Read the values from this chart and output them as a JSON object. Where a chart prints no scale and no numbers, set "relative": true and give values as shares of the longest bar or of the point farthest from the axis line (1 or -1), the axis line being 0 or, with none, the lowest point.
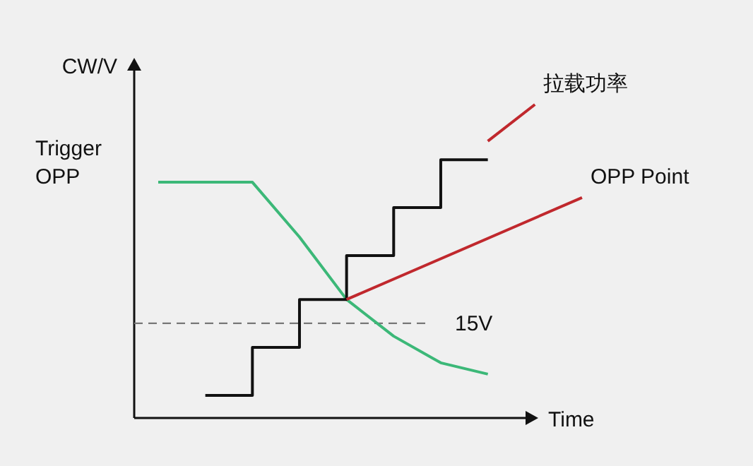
{
  "chart_data": {
    "type": "line",
    "relative": true,
    "ylabel": "CW/V",
    "xlabel": "Time",
    "categories": [
      null,
      null,
      null,
      null,
      null,
      null,
      null,
      null,
      null,
      null
    ],
    "series": [
      {
        "color": "#3cb878",
        "values": [
          0.752,
          0.752,
          0.752,
          0.577,
          0.378,
          0.261,
          0.176,
          0.14,
          null,
          null
        ]
      },
      {
        "type": "step",
        "color": "#111111",
        "values": [
          null,
          0.072,
          0.225,
          0.378,
          0.518,
          0.671,
          0.824,
          0.824,
          null,
          null
        ]
      },
      {
        "name": "OPP Point",
        "color": "#c0282d",
        "values": [
          null,
          null,
          null,
          null,
          0.378,
          null,
          null,
          null,
          null,
          0.703
        ]
      },
      {
        "name": "拉载功率",
        "color": "#c0282d",
        "values": [
          null,
          null,
          null,
          null,
          null,
          null,
          null,
          0.883,
          1.0,
          null
        ]
      }
    ],
    "ref_lines": [
      {
        "axis": "y",
        "value": 0.302,
        "label": "15V",
        "color": "#777777",
        "line_style": "dashed"
      }
    ],
    "annotations": [
      "Trigger OPP"
    ]
  }
}
